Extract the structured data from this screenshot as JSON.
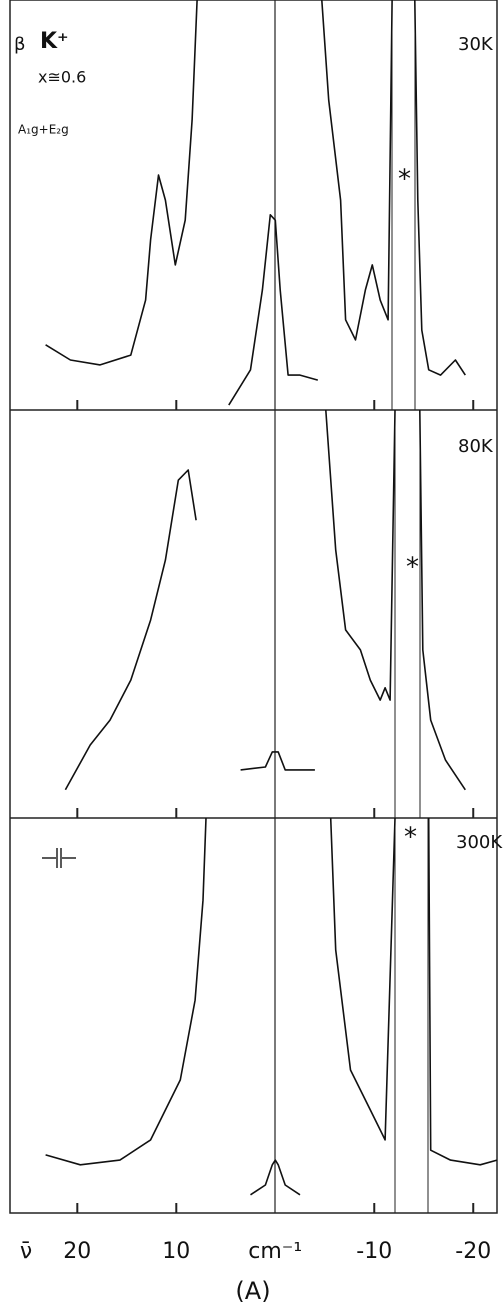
{
  "chart_data": [
    {
      "type": "line",
      "color": "#111111",
      "xlim": [
        26.8,
        -22.4
      ],
      "ylim": [
        0,
        100
      ],
      "annotations": [
        "β",
        "K⁺",
        "x≅0.6",
        "A₁g+E₂g",
        "30K",
        "*"
      ],
      "x": [
        23.2,
        20.7,
        17.7,
        14.6,
        13.1,
        12.6,
        11.8,
        11.1,
        10.1,
        9.1,
        8.4,
        7.9,
        null,
        4.7,
        2.5,
        1.3,
        0.5,
        0,
        -0.5,
        -1.3,
        -2.5,
        -4.3,
        null,
        -4.7,
        -5.4,
        -6.6,
        -7.1,
        -8.1,
        -9.1,
        -9.8,
        -10.6,
        -11.4,
        -11.8,
        null,
        -14.1,
        -14.4,
        -14.8,
        -15.5,
        -16.7,
        -18.2,
        -19.2
      ],
      "values": [
        15.9,
        12.2,
        11,
        13.4,
        26.8,
        41.5,
        57.3,
        51.2,
        35.4,
        46.3,
        70.7,
        100,
        null,
        1.2,
        9.8,
        29.3,
        47.6,
        46.3,
        29.3,
        8.5,
        8.5,
        7.3,
        null,
        100,
        75.6,
        51.2,
        22,
        17.1,
        29.3,
        35.4,
        26.8,
        22,
        100,
        null,
        100,
        51.2,
        19.5,
        9.8,
        8.5,
        12.2,
        8.5
      ]
    },
    {
      "type": "line",
      "color": "#111111",
      "xlim": [
        26.8,
        -22.4
      ],
      "ylim": [
        0,
        100
      ],
      "annotations": [
        "80K",
        "*"
      ],
      "x": [
        21.2,
        18.7,
        16.7,
        14.6,
        12.6,
        11.1,
        9.8,
        8.8,
        8,
        null,
        3.5,
        1,
        0.3,
        -0.3,
        -1,
        -4,
        null,
        -5.1,
        -6.1,
        -7.1,
        -8.6,
        -9.6,
        -10.6,
        -11.1,
        -11.6,
        -12.1,
        null,
        -14.6,
        -14.9,
        -15.7,
        -17.2,
        -19.2
      ],
      "values": [
        6.9,
        17.9,
        24,
        33.8,
        48.5,
        63.2,
        82.8,
        85.3,
        73,
        null,
        11.8,
        12.5,
        16.2,
        16.2,
        11.8,
        11.8,
        null,
        100,
        65.7,
        46.1,
        41.2,
        33.8,
        28.9,
        31.9,
        28.9,
        100,
        null,
        100,
        41.2,
        24,
        14.2,
        6.9
      ]
    },
    {
      "type": "line",
      "color": "#111111",
      "xlim": [
        26.8,
        -22.4
      ],
      "ylim": [
        0,
        100
      ],
      "annotations": [
        "300K",
        "*"
      ],
      "x": [
        23.2,
        19.7,
        15.7,
        12.6,
        9.6,
        8.1,
        7.3,
        7,
        null,
        2.5,
        1,
        0.3,
        0,
        -0.3,
        -1,
        -2.5,
        null,
        -5.6,
        -6.1,
        -7.6,
        -9.6,
        -11.1,
        -12.1,
        null,
        -15.5,
        -15.7,
        -17.7,
        -20.7,
        -22.4
      ],
      "values": [
        14.7,
        12.2,
        13.4,
        18.5,
        33.7,
        53.9,
        79.2,
        100,
        null,
        4.6,
        7.1,
        12.2,
        13.4,
        12.2,
        7.1,
        4.6,
        null,
        100,
        66.6,
        36.2,
        26.1,
        18.5,
        100,
        null,
        100,
        15.9,
        13.4,
        12.2,
        13.4
      ],
      "xlabel": "ν̄",
      "xticks": [
        20,
        10,
        {
          "value": 0,
          "label": "cm⁻¹"
        },
        -10,
        -20
      ],
      "caption": "(A)"
    }
  ]
}
